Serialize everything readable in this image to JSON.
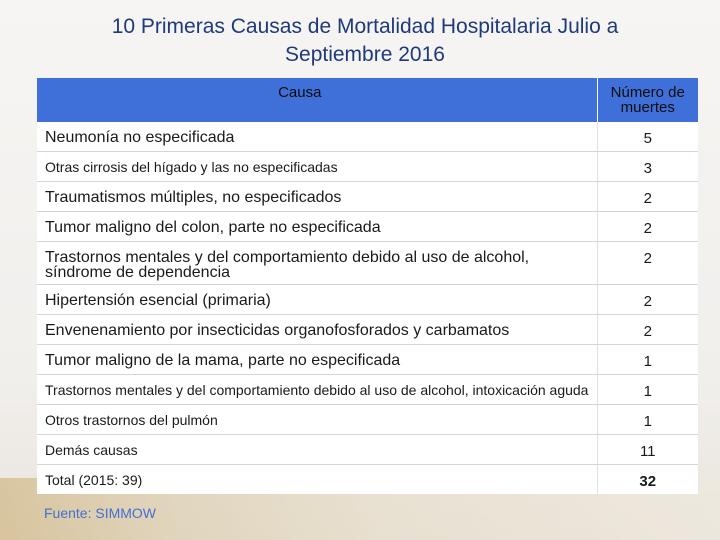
{
  "title": {
    "line1": "10 Primeras Causas de Mortalidad Hospitalaria  Julio a",
    "line2": "Septiembre 2016"
  },
  "table": {
    "headers": {
      "causa": "Causa",
      "numero": "Número de muertes"
    },
    "rows": [
      {
        "causa": "Neumonía no especificada",
        "numero": "5",
        "size": "lg"
      },
      {
        "causa": "Otras cirrosis del hígado y las no especificadas",
        "numero": "3",
        "size": "sm"
      },
      {
        "causa": "Traumatismos múltiples, no especificados",
        "numero": "2",
        "size": "lg"
      },
      {
        "causa": "Tumor maligno del colon, parte no especificada",
        "numero": "2",
        "size": "lg"
      },
      {
        "causa": "Trastornos mentales y del comportamiento debido al uso de alcohol, síndrome de dependencia",
        "numero": "2",
        "size": "lg"
      },
      {
        "causa": "Hipertensión esencial (primaria)",
        "numero": "2",
        "size": "lg"
      },
      {
        "causa": "Envenenamiento por insecticidas organofosforados y carbamatos",
        "numero": "2",
        "size": "lg"
      },
      {
        "causa": "Tumor maligno de la mama, parte no especificada",
        "numero": "1",
        "size": "lg"
      },
      {
        "causa": "Trastornos mentales y del comportamiento debido al uso de alcohol, intoxicación aguda",
        "numero": "1",
        "size": "sm"
      },
      {
        "causa": "Otros trastornos del pulmón",
        "numero": "1",
        "size": "sm"
      },
      {
        "causa": "Demás causas",
        "numero": "11",
        "size": "sm"
      }
    ],
    "total": {
      "causa": "Total (2015: 39)",
      "numero": "32"
    }
  },
  "source": "Fuente: SIMMOW"
}
